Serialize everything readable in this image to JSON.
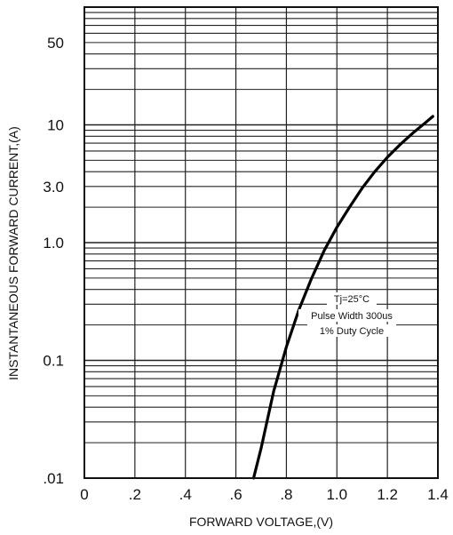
{
  "chart_data": {
    "type": "line",
    "xlabel": "FORWARD VOLTAGE,(V)",
    "ylabel": "INSTANTANEOUS FORWARD CURRENT,(A)",
    "x_ticks": [
      {
        "value": 0,
        "label": "0"
      },
      {
        "value": 0.2,
        "label": ".2"
      },
      {
        "value": 0.4,
        "label": ".4"
      },
      {
        "value": 0.6,
        "label": ".6"
      },
      {
        "value": 0.8,
        "label": ".8"
      },
      {
        "value": 1.0,
        "label": "1.0"
      },
      {
        "value": 1.2,
        "label": "1.2"
      },
      {
        "value": 1.4,
        "label": "1.4"
      }
    ],
    "y_ticks": [
      {
        "value": 0.01,
        "label": ".01"
      },
      {
        "value": 0.1,
        "label": "0.1"
      },
      {
        "value": 1,
        "label": "1.0"
      },
      {
        "value": 3,
        "label": "3.0"
      },
      {
        "value": 10,
        "label": "10"
      },
      {
        "value": 50,
        "label": "50"
      }
    ],
    "xlim": [
      0,
      1.4
    ],
    "ylim": [
      0.01,
      100
    ],
    "y_scale": "log",
    "grid": true,
    "annotations": [
      "Tj=25°C",
      "Pulse Width 300us",
      "1% Duty Cycle"
    ],
    "series": [
      {
        "x": [
          0.67,
          0.7,
          0.75,
          0.8,
          0.85,
          0.9,
          0.95,
          1.0,
          1.05,
          1.1,
          1.15,
          1.2,
          1.25,
          1.3,
          1.35,
          1.38
        ],
        "y": [
          0.01,
          0.018,
          0.055,
          0.13,
          0.27,
          0.5,
          0.86,
          1.35,
          2.0,
          2.9,
          4.0,
          5.3,
          6.8,
          8.5,
          10.4,
          11.8
        ]
      }
    ],
    "colors": {
      "line": "#000000",
      "grid": "#222222"
    }
  }
}
